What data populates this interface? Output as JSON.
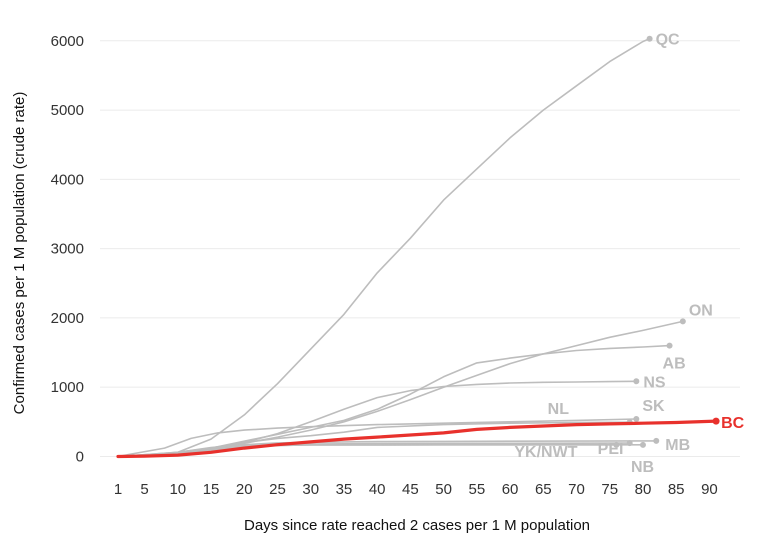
{
  "chart_data": {
    "type": "line",
    "xlabel": "Days since rate reached 2 cases per 1 M population",
    "ylabel": "Confirmed cases per 1 M population (crude rate)",
    "xlim": [
      1,
      94
    ],
    "ylim": [
      -80,
      6300
    ],
    "x_ticks": [
      1,
      5,
      10,
      15,
      20,
      25,
      30,
      35,
      40,
      45,
      50,
      55,
      60,
      65,
      70,
      75,
      80,
      85,
      90
    ],
    "y_ticks": [
      0,
      1000,
      2000,
      3000,
      4000,
      5000,
      6000
    ],
    "grid": "horizontal",
    "highlight_color": "#e8312c",
    "other_color": "#bdbdbd",
    "series": [
      {
        "name": "QC",
        "highlight": false,
        "x": [
          1,
          5,
          10,
          15,
          20,
          25,
          30,
          35,
          40,
          45,
          50,
          55,
          60,
          65,
          70,
          75,
          80,
          81
        ],
        "y": [
          0,
          15,
          60,
          250,
          600,
          1050,
          1550,
          2050,
          2650,
          3150,
          3700,
          4150,
          4600,
          5000,
          5350,
          5700,
          5990,
          6030
        ]
      },
      {
        "name": "ON",
        "highlight": false,
        "x": [
          1,
          10,
          15,
          20,
          25,
          30,
          35,
          40,
          45,
          50,
          55,
          60,
          65,
          70,
          75,
          80,
          86
        ],
        "y": [
          0,
          60,
          120,
          190,
          280,
          380,
          500,
          650,
          820,
          1000,
          1170,
          1340,
          1480,
          1600,
          1720,
          1820,
          1950
        ]
      },
      {
        "name": "AB",
        "highlight": false,
        "x": [
          1,
          10,
          15,
          20,
          25,
          30,
          35,
          40,
          45,
          50,
          55,
          60,
          65,
          70,
          75,
          80,
          84
        ],
        "y": [
          0,
          40,
          120,
          220,
          320,
          420,
          520,
          680,
          900,
          1150,
          1350,
          1420,
          1480,
          1530,
          1560,
          1580,
          1600
        ]
      },
      {
        "name": "NS",
        "highlight": false,
        "x": [
          1,
          10,
          15,
          20,
          25,
          30,
          35,
          40,
          45,
          50,
          55,
          60,
          65,
          70,
          75,
          79
        ],
        "y": [
          0,
          30,
          100,
          200,
          330,
          500,
          680,
          850,
          950,
          1010,
          1040,
          1060,
          1070,
          1075,
          1080,
          1085
        ]
      },
      {
        "name": "SK",
        "highlight": false,
        "x": [
          1,
          8,
          12,
          16,
          20,
          25,
          30,
          40,
          50,
          60,
          70,
          79
        ],
        "y": [
          0,
          120,
          260,
          340,
          380,
          410,
          430,
          460,
          480,
          500,
          520,
          540
        ]
      },
      {
        "name": "NL",
        "highlight": false,
        "x": [
          1,
          10,
          15,
          20,
          25,
          30,
          35,
          40,
          50,
          60,
          70,
          78
        ],
        "y": [
          0,
          40,
          120,
          200,
          260,
          300,
          350,
          420,
          460,
          480,
          490,
          495
        ]
      },
      {
        "name": "BC",
        "highlight": true,
        "x": [
          1,
          5,
          10,
          15,
          20,
          25,
          30,
          35,
          40,
          45,
          50,
          55,
          60,
          65,
          70,
          75,
          80,
          85,
          91
        ],
        "y": [
          0,
          5,
          20,
          60,
          120,
          170,
          210,
          250,
          280,
          310,
          340,
          390,
          420,
          440,
          460,
          470,
          480,
          490,
          510
        ]
      },
      {
        "name": "MB",
        "highlight": false,
        "x": [
          1,
          10,
          15,
          20,
          25,
          30,
          40,
          50,
          60,
          70,
          82
        ],
        "y": [
          0,
          60,
          130,
          170,
          195,
          205,
          215,
          218,
          220,
          222,
          225
        ]
      },
      {
        "name": "PEI",
        "highlight": false,
        "x": [
          1,
          10,
          15,
          20,
          25,
          30,
          40,
          50,
          60,
          70,
          78
        ],
        "y": [
          0,
          50,
          110,
          150,
          170,
          180,
          185,
          188,
          190,
          192,
          193
        ]
      },
      {
        "name": "NB",
        "highlight": false,
        "x": [
          1,
          10,
          15,
          20,
          25,
          30,
          40,
          50,
          60,
          70,
          80
        ],
        "y": [
          0,
          40,
          100,
          140,
          160,
          165,
          167,
          168,
          168,
          168,
          168
        ]
      },
      {
        "name": "YK/NWT",
        "highlight": false,
        "x": [
          1,
          10,
          15,
          20,
          25,
          30,
          40,
          50,
          60,
          70,
          76
        ],
        "y": [
          0,
          40,
          90,
          140,
          160,
          165,
          167,
          168,
          168,
          168,
          168
        ]
      }
    ]
  }
}
